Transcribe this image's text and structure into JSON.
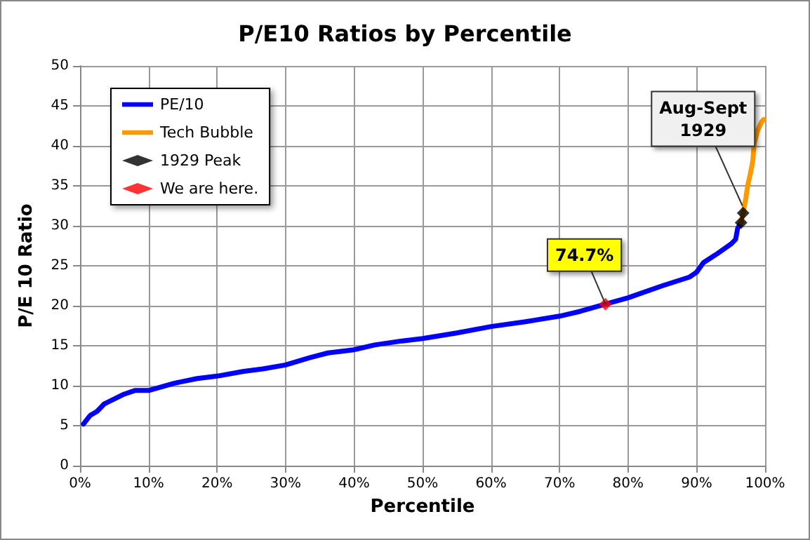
{
  "chart_data": {
    "type": "line",
    "title": "P/E10 Ratios by Percentile",
    "xlabel": "Percentile",
    "ylabel": "P/E 10 Ratio",
    "xlim": [
      0,
      100
    ],
    "xticks": [
      {
        "value": 0,
        "label": "0%"
      },
      {
        "value": 10,
        "label": "10%"
      },
      {
        "value": 20,
        "label": "20%"
      },
      {
        "value": 30,
        "label": "30%"
      },
      {
        "value": 40,
        "label": "40%"
      },
      {
        "value": 50,
        "label": "50%"
      },
      {
        "value": 60,
        "label": "60%"
      },
      {
        "value": 70,
        "label": "70%"
      },
      {
        "value": 80,
        "label": "80%"
      },
      {
        "value": 90,
        "label": "90%"
      },
      {
        "value": 100,
        "label": "100%"
      }
    ],
    "ylim": [
      0,
      50
    ],
    "yticks": [
      0,
      5,
      10,
      15,
      20,
      25,
      30,
      35,
      40,
      45,
      50
    ],
    "grid": true,
    "legend": "top left",
    "series": [
      {
        "name": "PE/10",
        "type": "line",
        "color": "#0000ff",
        "marker": "none",
        "x": [
          0.5,
          1.5,
          2.5,
          3.5,
          4.9,
          6.3,
          8,
          10,
          13.7,
          17.1,
          20,
          23.9,
          26.7,
          30,
          33.5,
          36.2,
          40,
          43,
          47,
          50,
          55,
          60,
          65,
          70,
          73,
          76.7,
          80,
          85,
          89,
          90,
          91,
          93,
          95,
          95.7,
          96,
          96.5
        ],
        "values": [
          5.2,
          6.3,
          6.8,
          7.7,
          8.3,
          8.9,
          9.4,
          9.4,
          10.3,
          10.9,
          11.2,
          11.8,
          12.1,
          12.6,
          13.5,
          14.1,
          14.5,
          15.1,
          15.6,
          15.9,
          16.6,
          17.4,
          18,
          18.7,
          19.3,
          20.2,
          21,
          22.5,
          23.6,
          24.2,
          25.4,
          26.5,
          27.7,
          28.3,
          29.7,
          30.4
        ]
      },
      {
        "name": "Tech Bubble",
        "type": "line",
        "color": "#ff9900",
        "marker": "none",
        "x": [
          96.5,
          96.8,
          97.2,
          97.5,
          97.9,
          98.2,
          98.4,
          98.9,
          99.5,
          99.8
        ],
        "values": [
          30.4,
          31.6,
          33.5,
          35.2,
          36.7,
          38.1,
          40.2,
          41.9,
          43,
          43.3
        ]
      },
      {
        "name": "1929 Peak",
        "type": "scatter",
        "color": "#000000",
        "marker": "diamond",
        "x": [
          96.5,
          96.8
        ],
        "values": [
          30.4,
          31.6
        ]
      },
      {
        "name": "We are here.",
        "type": "scatter",
        "color": "#ff0000",
        "marker": "diamond",
        "x": [
          76.7
        ],
        "values": [
          20.2
        ]
      }
    ],
    "annotations": [
      {
        "text": "74.7%",
        "x": 76.7,
        "y": 20.2
      },
      {
        "text": "Aug-Sept\n1929",
        "x": 96.7,
        "y": 32.5
      }
    ]
  }
}
